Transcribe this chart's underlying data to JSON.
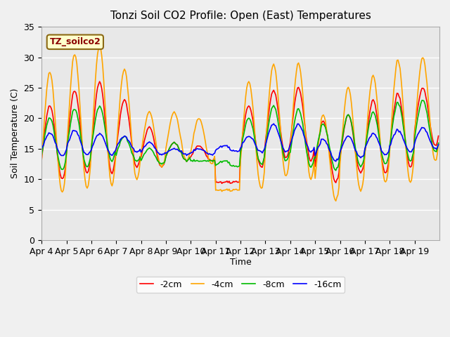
{
  "title": "Tonzi Soil CO2 Profile: Open (East) Temperatures",
  "ylabel": "Soil Temperature (C)",
  "xlabel": "Time",
  "annotation_label": "TZ_soilco2",
  "ylim": [
    0,
    35
  ],
  "colors": {
    "2cm": "#ff0000",
    "4cm": "#ffa500",
    "8cm": "#00bb00",
    "16cm": "#0000ff"
  },
  "legend_labels": [
    "-2cm",
    "-4cm",
    "-8cm",
    "-16cm"
  ],
  "bg_color": "#e8e8e8",
  "grid_color": "#ffffff",
  "annotation_bg": "#ffffcc",
  "annotation_text_color": "#8b0000",
  "annotation_border_color": "#8b6914",
  "xtick_labels": [
    "Apr 4",
    "Apr 5",
    "Apr 6",
    "Apr 7",
    "Apr 8",
    "Apr 9",
    "Apr 10",
    "Apr 11",
    "Apr 12",
    "Apr 13",
    "Apr 14",
    "Apr 15",
    "Apr 16",
    "Apr 17",
    "Apr 18",
    "Apr 19"
  ],
  "ytick_labels": [
    0,
    5,
    10,
    15,
    20,
    25,
    30,
    35
  ],
  "day_peaks_2cm": [
    22.0,
    24.5,
    26.0,
    23.0,
    18.5,
    16.0,
    15.5,
    9.5,
    22.0,
    24.5,
    25.0,
    19.5,
    20.5,
    23.0,
    24.0,
    25.0
  ],
  "day_peaks_4cm": [
    27.5,
    30.5,
    32.0,
    28.0,
    21.0,
    21.0,
    20.0,
    8.2,
    26.0,
    28.8,
    29.0,
    20.5,
    25.0,
    27.0,
    29.5,
    30.0
  ],
  "day_peaks_8cm": [
    20.0,
    21.5,
    22.0,
    17.0,
    15.0,
    16.0,
    13.0,
    13.0,
    20.0,
    22.0,
    21.5,
    19.0,
    20.5,
    21.0,
    22.5,
    23.0
  ],
  "day_peaks_16cm": [
    17.5,
    18.0,
    17.5,
    17.0,
    16.0,
    15.0,
    15.0,
    15.5,
    17.0,
    19.0,
    19.0,
    16.5,
    17.0,
    17.5,
    18.0,
    18.5
  ],
  "day_troughs_2cm": [
    10.0,
    11.0,
    11.0,
    12.0,
    12.0,
    13.0,
    13.0,
    9.5,
    12.0,
    13.5,
    13.0,
    9.5,
    11.0,
    11.0,
    12.0,
    15.5
  ],
  "day_troughs_4cm": [
    7.8,
    8.5,
    9.0,
    10.0,
    12.0,
    13.0,
    12.5,
    8.2,
    8.5,
    10.5,
    10.0,
    6.5,
    8.0,
    9.5,
    9.5,
    13.0
  ],
  "day_troughs_8cm": [
    11.5,
    12.0,
    13.0,
    13.0,
    12.5,
    13.0,
    13.0,
    12.0,
    12.5,
    13.0,
    12.0,
    11.5,
    12.0,
    12.5,
    13.0,
    14.5
  ],
  "day_troughs_16cm": [
    13.8,
    14.0,
    14.0,
    14.5,
    14.0,
    14.0,
    14.0,
    14.5,
    14.5,
    14.5,
    14.5,
    13.0,
    13.5,
    14.0,
    14.5,
    15.0
  ]
}
